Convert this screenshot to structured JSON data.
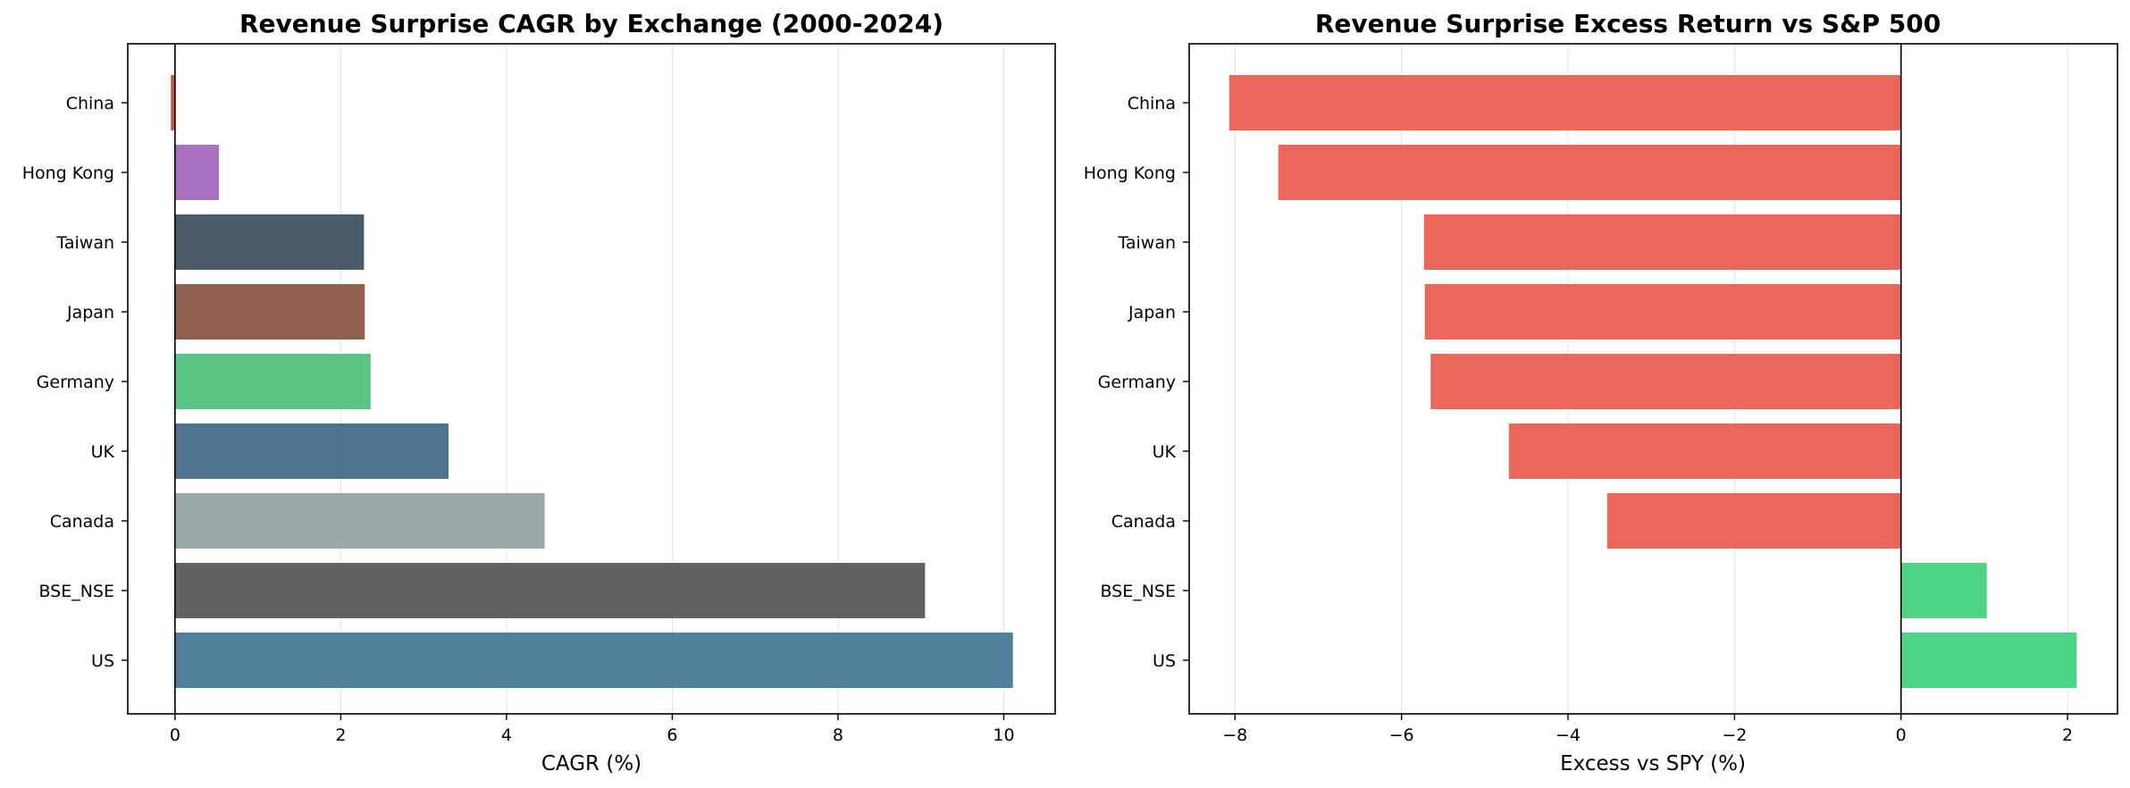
{
  "chart_data": [
    {
      "type": "bar",
      "orientation": "horizontal",
      "title": "Revenue Surprise CAGR by Exchange (2000-2024)",
      "xlabel": "CAGR (%)",
      "ylabel": "",
      "categories": [
        "China",
        "Hong Kong",
        "Taiwan",
        "Japan",
        "Germany",
        "UK",
        "Canada",
        "BSE_NSE",
        "US"
      ],
      "values": [
        -0.05,
        0.53,
        2.28,
        2.29,
        2.36,
        3.3,
        4.46,
        9.05,
        10.11
      ],
      "bar_colors": [
        "#c0392b",
        "#9b59b6",
        "#2c3e50",
        "#7b4430",
        "#3ebc6f",
        "#2f5a7a",
        "#8a9a9a",
        "#454545",
        "#34688b"
      ],
      "xlim": [
        -0.57,
        10.62
      ],
      "xticks": [
        0,
        2,
        4,
        6,
        8,
        10
      ],
      "xtick_labels": [
        "0",
        "2",
        "4",
        "6",
        "8",
        "10"
      ],
      "grid": "vertical",
      "zero_line": true
    },
    {
      "type": "bar",
      "orientation": "horizontal",
      "title": "Revenue Surprise Excess Return vs S&P 500",
      "xlabel": "Excess vs SPY (%)",
      "ylabel": "",
      "categories": [
        "China",
        "Hong Kong",
        "Taiwan",
        "Japan",
        "Germany",
        "UK",
        "Canada",
        "BSE_NSE",
        "US"
      ],
      "values": [
        -8.07,
        -7.48,
        -5.73,
        -5.72,
        -5.65,
        -4.71,
        -3.53,
        1.03,
        2.11
      ],
      "bar_colors": [
        "#e74c3c",
        "#e74c3c",
        "#e74c3c",
        "#e74c3c",
        "#e74c3c",
        "#e74c3c",
        "#e74c3c",
        "#2ecc71",
        "#2ecc71"
      ],
      "xlim": [
        -8.55,
        2.6
      ],
      "xticks": [
        -8,
        -6,
        -4,
        -2,
        0,
        2
      ],
      "xtick_labels": [
        "−8",
        "−6",
        "−4",
        "−2",
        "0",
        "2"
      ],
      "grid": "vertical",
      "zero_line": true
    }
  ]
}
